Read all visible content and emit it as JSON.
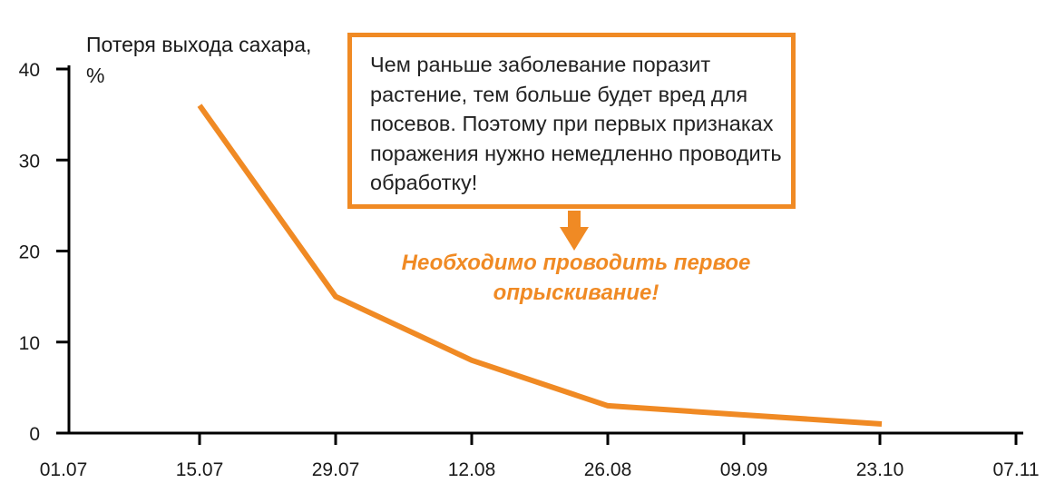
{
  "chart_data": {
    "type": "line",
    "ylabel": "Потеря выхода сахара, %",
    "x": [
      "15.07",
      "29.07",
      "12.08",
      "26.08",
      "09.09",
      "23.10"
    ],
    "x_ticks": [
      "01.07",
      "15.07",
      "29.07",
      "12.08",
      "26.08",
      "09.09",
      "23.10",
      "07.11"
    ],
    "y_ticks": [
      "0",
      "10",
      "20",
      "30",
      "40"
    ],
    "ylim": [
      0,
      40
    ],
    "series": [
      {
        "values": [
          36,
          15,
          8,
          3,
          2,
          1
        ]
      }
    ],
    "line_color": "#f08a24",
    "grid": false
  },
  "annotation": {
    "box_text": "Чем раньше заболевание поразит растение, тем больше будет вред для посевов. Поэтому при первых признаках поражения нужно немедленно проводить обработку!",
    "callout_text": "Необходимо проводить первое опрыскивание!",
    "accent_color": "#f08a24"
  }
}
